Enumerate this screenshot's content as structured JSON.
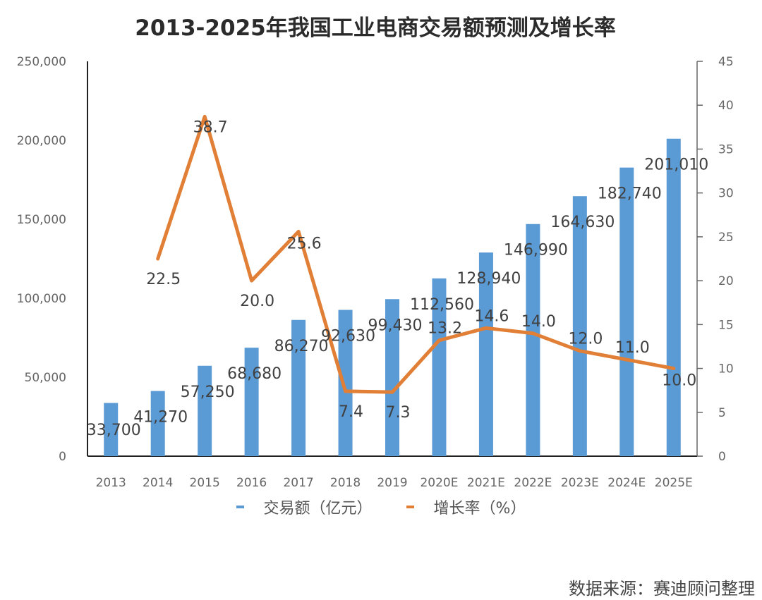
{
  "chart_data": {
    "type": "bar+line",
    "title": "2013-2025年我国工业电商交易额预测及增长率",
    "categories": [
      "2013",
      "2014",
      "2015",
      "2016",
      "2017",
      "2018",
      "2019",
      "2020E",
      "2021E",
      "2022E",
      "2023E",
      "2024E",
      "2025E"
    ],
    "series": [
      {
        "name": "交易额（亿元）",
        "type": "bar",
        "axis": "left",
        "color": "#5b9bd5",
        "values": [
          33700,
          41270,
          57250,
          68680,
          86270,
          92630,
          99430,
          112560,
          128940,
          146990,
          164630,
          182740,
          201010
        ],
        "labels": [
          "33,700",
          "41,270",
          "57,250",
          "68,680",
          "86,270",
          "92,630",
          "99,430",
          "112,560",
          "128,940",
          "146,990",
          "164,630",
          "182,740",
          "201,010"
        ]
      },
      {
        "name": "增长率（%）",
        "type": "line",
        "axis": "right",
        "color": "#e07f35",
        "values": [
          null,
          22.5,
          38.7,
          20.0,
          25.6,
          7.4,
          7.3,
          13.2,
          14.6,
          14.0,
          12.0,
          11.0,
          10.0
        ],
        "labels": [
          "",
          "22.5",
          "38.7",
          "20.0",
          "25.6",
          "7.4",
          "7.3",
          "13.2",
          "14.6",
          "14.0",
          "12.0",
          "11.0",
          "10.0"
        ]
      }
    ],
    "left_axis": {
      "ylim": [
        0,
        250000
      ],
      "ticks": [
        0,
        50000,
        100000,
        150000,
        200000,
        250000
      ],
      "tick_labels": [
        "0",
        "50,000",
        "100,000",
        "150,000",
        "200,000",
        "250,000"
      ]
    },
    "right_axis": {
      "ylim": [
        0,
        45
      ],
      "ticks": [
        0,
        5,
        10,
        15,
        20,
        25,
        30,
        35,
        40,
        45
      ],
      "tick_labels": [
        "0",
        "5",
        "10",
        "15",
        "20",
        "25",
        "30",
        "35",
        "40",
        "45"
      ]
    },
    "legend_position": "bottom"
  },
  "legend": {
    "bar_label": "交易额（亿元）",
    "line_label": "增长率（%）"
  },
  "source": "数据来源：赛迪顾问整理",
  "colors": {
    "bar": "#5b9bd5",
    "line": "#e07f35",
    "axis": "#333333"
  }
}
